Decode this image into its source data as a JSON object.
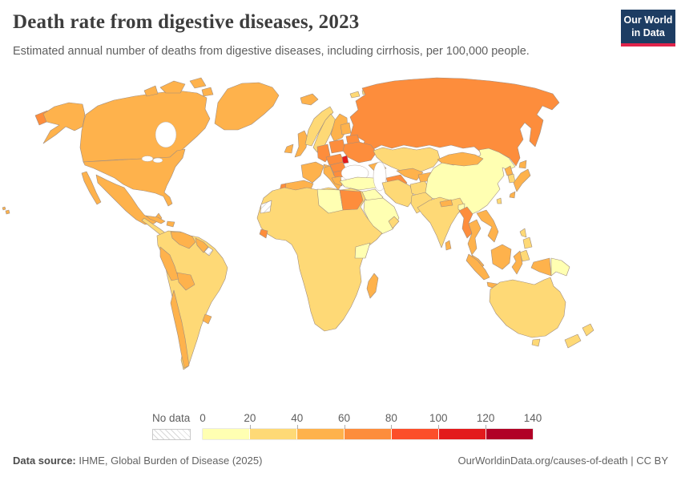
{
  "header": {
    "title": "Death rate from digestive diseases, 2023",
    "subtitle": "Estimated annual number of deaths from digestive diseases, including cirrhosis, per 100,000 people.",
    "logo": {
      "line1": "Our World",
      "line2": "in Data",
      "bg_color": "#1d3d63",
      "accent_color": "#e0244a"
    }
  },
  "legend": {
    "no_data_label": "No data",
    "ticks": [
      "0",
      "20",
      "40",
      "60",
      "80",
      "100",
      "120",
      "140"
    ],
    "bin_colors": [
      "#ffffb2",
      "#fed976",
      "#feb24c",
      "#fd8d3c",
      "#fc4e2a",
      "#e31a1c",
      "#b10026"
    ]
  },
  "footer": {
    "source_label": "Data source:",
    "source_text": " IHME, Global Burden of Disease (2025)",
    "credit": "OurWorldinData.org/causes-of-death | CC BY"
  },
  "map": {
    "ocean_color": "#ffffff",
    "border_color": "#a08d7f",
    "region_colors": {
      "canada": "#feb24c",
      "alaska_usa": "#feb24c",
      "usa": "#feb24c",
      "hawaii": "#feb24c",
      "greenland": "#feb24c",
      "arctic_islands": "#feb24c",
      "mexico": "#feb24c",
      "baja_california": "#feb24c",
      "cuba": "#feb24c",
      "hispaniola": "#feb24c",
      "central_america": "#fed976",
      "panama": "#feb24c",
      "south_america": "#fed976",
      "venezuela": "#feb24c",
      "guyana_suriname": "#feb24c",
      "french_guiana": "no-data",
      "peru": "#feb24c",
      "bolivia": "#feb24c",
      "chile": "#feb24c",
      "uruguay": "#feb24c",
      "iceland": "#feb24c",
      "uk": "#feb24c",
      "ireland": "#feb24c",
      "norway": "#fed976",
      "sweden": "#fed976",
      "finland": "#feb24c",
      "denmark": "#fd8d3c",
      "svalbard": "#fed976",
      "france": "#feb24c",
      "germany": "#fd8d3c",
      "spain": "#feb24c",
      "portugal": "#fd8d3c",
      "italy": "#feb24c",
      "sicily": "#feb24c",
      "central_europe": "#fd8d3c",
      "poland": "#fd8d3c",
      "baltics": "#feb24c",
      "belarus": "#fd8d3c",
      "ukraine": "#fd8d3c",
      "moldova": "#e31a1c",
      "romania": "#fd8d3c",
      "bulgaria": "#fd8d3c",
      "balkans": "#feb24c",
      "greece": "#feb24c",
      "russia": "#fd8d3c",
      "chukotka_russia": "#fd8d3c",
      "kazakhstan": "#fed976",
      "caucasus": "#feb24c",
      "turkey": "#ffffb2",
      "turkmenistan": "#fd8d3c",
      "uzbekistan": "#feb24c",
      "kyrgyzstan_tajikistan": "#feb24c",
      "iran": "#fed976",
      "iraq_syria": "#ffffb2",
      "saudi_arabia": "#ffffb2",
      "oman": "#fed976",
      "afghanistan": "#fed976",
      "pakistan": "#fed976",
      "india": "#fed976",
      "nepal": "#feb24c",
      "bangladesh": "#ffffb2",
      "sri_lanka": "#feb24c",
      "china": "#ffffb2",
      "mongolia": "#feb24c",
      "north_korea": "#feb24c",
      "south_korea": "#fed976",
      "japan": "#feb24c",
      "taiwan": "#fed976",
      "myanmar": "#fd8d3c",
      "thailand": "#feb24c",
      "indochina": "#feb24c",
      "malaysia": "#feb24c",
      "philippines": "#fed976",
      "indonesia": "#feb24c",
      "west_new_guinea": "#feb24c",
      "papua_new_guinea": "#ffffb2",
      "australia": "#fed976",
      "tasmania": "#fed976",
      "new_zealand": "#fed976",
      "africa": "#fed976",
      "western_sahara": "no-data",
      "libya": "#ffffb2",
      "egypt": "#fd8d3c",
      "sierra_leone": "#fd8d3c",
      "kenya_uganda": "#ffffb2",
      "madagascar": "#feb24c"
    }
  },
  "chart_data": {
    "type": "heatmap",
    "variant": "choropleth-world-map",
    "title": "Death rate from digestive diseases, 2023",
    "unit": "deaths per 100,000 people",
    "year": 2023,
    "legend_position": "bottom",
    "value_range": [
      0,
      140
    ],
    "bin_size": 20,
    "legend_bins": [
      {
        "range": "0-20",
        "color": "#ffffb2"
      },
      {
        "range": "20-40",
        "color": "#fed976"
      },
      {
        "range": "40-60",
        "color": "#feb24c"
      },
      {
        "range": "60-80",
        "color": "#fd8d3c"
      },
      {
        "range": "80-100",
        "color": "#fc4e2a"
      },
      {
        "range": "100-120",
        "color": "#e31a1c"
      },
      {
        "range": "120-140",
        "color": "#b10026"
      },
      {
        "range": "No data",
        "color": "hatched"
      }
    ],
    "regions_by_bin": {
      "0-20": [
        "China",
        "Turkey",
        "Saudi Arabia",
        "Iraq",
        "Syria",
        "Libya",
        "Kenya",
        "Uganda",
        "Bangladesh",
        "Papua New Guinea"
      ],
      "20-40": [
        "Brazil",
        "Colombia",
        "Argentina",
        "Paraguay",
        "Most of Sub-Saharan Africa",
        "India",
        "Iran",
        "Afghanistan",
        "Pakistan",
        "Kazakhstan",
        "Norway",
        "Sweden",
        "Australia",
        "New Zealand",
        "Philippines",
        "South Korea",
        "Central America"
      ],
      "40-60": [
        "United States",
        "Canada",
        "Greenland",
        "Mexico",
        "Cuba",
        "Venezuela",
        "Peru",
        "Bolivia",
        "Chile",
        "Uruguay",
        "United Kingdom",
        "Ireland",
        "France",
        "Spain",
        "Italy",
        "Finland",
        "Iceland",
        "Greece",
        "Mongolia",
        "Japan",
        "North Korea",
        "Thailand",
        "Vietnam",
        "Indonesia",
        "Uzbekistan",
        "Madagascar"
      ],
      "60-80": [
        "Russia",
        "Germany",
        "Poland",
        "Ukraine",
        "Belarus",
        "Romania",
        "Bulgaria",
        "Hungary",
        "Czechia",
        "Slovakia",
        "Austria",
        "Portugal",
        "Denmark",
        "Egypt",
        "Myanmar",
        "Turkmenistan",
        "Sierra Leone"
      ],
      "100-120": [
        "Moldova"
      ],
      "no_data": [
        "Western Sahara",
        "French Guiana"
      ]
    }
  }
}
